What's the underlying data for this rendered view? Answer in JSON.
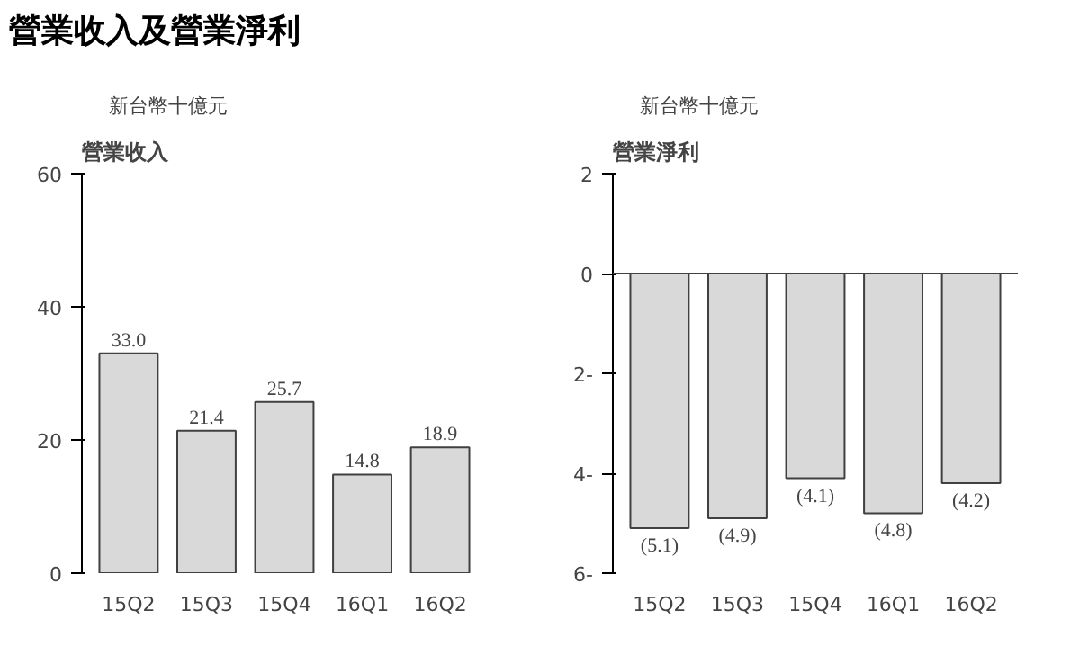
{
  "chart_data": [
    {
      "type": "bar",
      "title": "營業收入",
      "ylabel": "新台幣十億元",
      "annotations": [
        "營業收入及營業淨利"
      ],
      "categories": [
        "15Q2",
        "15Q3",
        "15Q4",
        "16Q1",
        "16Q2"
      ],
      "values": [
        33.0,
        21.4,
        25.7,
        14.8,
        18.9
      ],
      "color": "#d9d9d9",
      "value_labels": [
        "33.0",
        "21.4",
        "25.7",
        "14.8",
        "18.9"
      ],
      "ylim": [
        0,
        60
      ],
      "yticks": [
        0,
        20,
        40,
        60
      ],
      "grid": false
    },
    {
      "type": "bar",
      "title": "營業淨利",
      "ylabel": "新台幣十億元",
      "categories": [
        "15Q2",
        "15Q3",
        "15Q4",
        "16Q1",
        "16Q2"
      ],
      "values": [
        -5.1,
        -4.9,
        -4.1,
        -4.8,
        -4.2
      ],
      "color": "#d9d9d9",
      "value_labels": [
        "(5.1)",
        "(4.9)",
        "(4.1)",
        "(4.8)",
        "(4.2)"
      ],
      "ylim": [
        -6,
        2
      ],
      "yticks": [
        2,
        0,
        {
          "value": -2,
          "label": "2-"
        },
        {
          "value": -4,
          "label": "4-"
        },
        {
          "value": -6,
          "label": "6-"
        }
      ],
      "ref_lines": [
        {
          "axis": "y",
          "value": 0
        }
      ],
      "grid": false
    }
  ]
}
